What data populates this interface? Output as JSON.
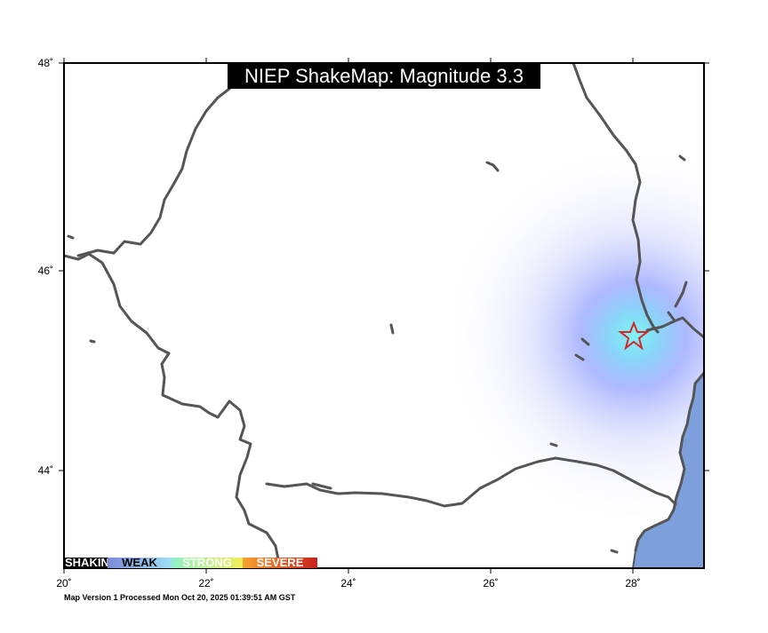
{
  "title": "NIEP ShakeMap: Magnitude 3.3",
  "footer": "Map Version 1 Processed Mon Oct 20, 2025 01:39:51 AM GST",
  "axes": {
    "x_ticks": [
      "20˚",
      "22˚",
      "24˚",
      "26˚",
      "28˚"
    ],
    "y_ticks": [
      "48˚",
      "46˚",
      "44˚"
    ]
  },
  "legend": {
    "items": [
      "SHAKING",
      "WEAK",
      "STRONG",
      "SEVERE"
    ]
  },
  "colors": {
    "border": "#555555",
    "sea": "#7da0dc",
    "epicenter_star": "#d62728",
    "shake_core": "#7ff4f4",
    "shake_mid": "#9aa8ff"
  },
  "icons": {
    "epicenter": "star-icon"
  }
}
